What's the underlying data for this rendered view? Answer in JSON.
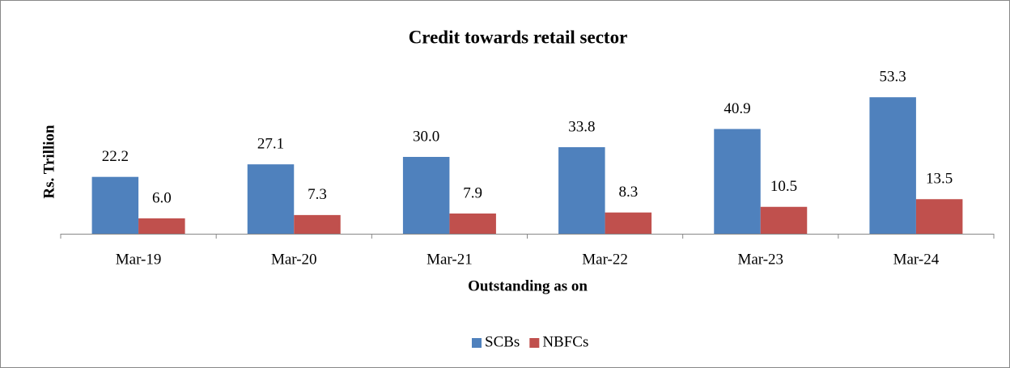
{
  "chart_data": {
    "type": "bar",
    "title": "Credit towards retail sector",
    "ylabel": "Rs. Trillion",
    "xlabel": "Outstanding as on",
    "categories": [
      "Mar-19",
      "Mar-20",
      "Mar-21",
      "Mar-22",
      "Mar-23",
      "Mar-24"
    ],
    "series": [
      {
        "name": "SCBs",
        "color": "#4f81bd",
        "values": [
          22.2,
          27.1,
          30,
          33.8,
          40.9,
          53.3
        ],
        "value_labels": [
          "22.2",
          "27.1",
          "30.0",
          "33.8",
          "40.9",
          "53.3"
        ]
      },
      {
        "name": "NBFCs",
        "color": "#c0504d",
        "values": [
          6,
          7.3,
          7.9,
          8.3,
          10.5,
          13.5
        ],
        "value_labels": [
          "6.0",
          "7.3",
          "7.9",
          "8.3",
          "10.5",
          "13.5"
        ]
      }
    ],
    "ylim": [
      0,
      60
    ],
    "legend": "bottom"
  }
}
